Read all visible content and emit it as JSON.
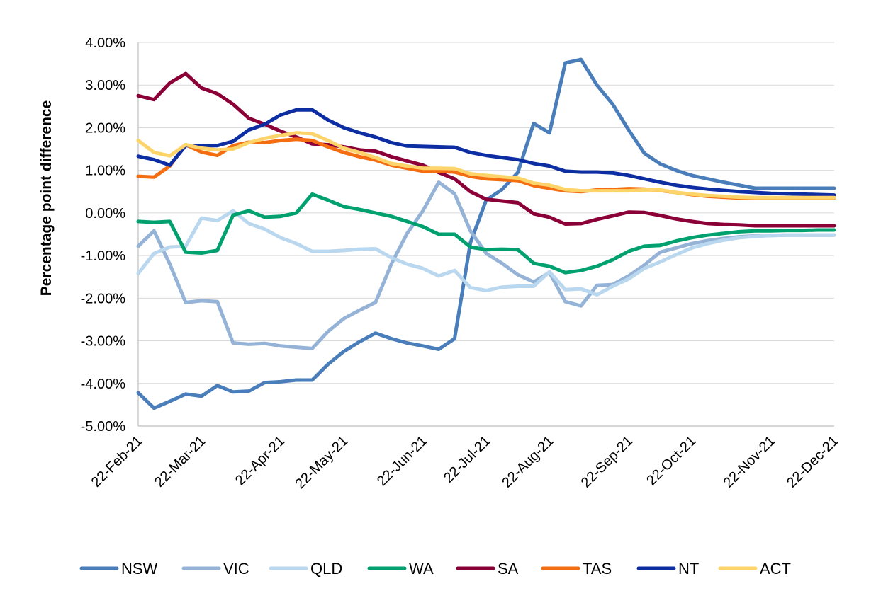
{
  "chart_data": {
    "type": "line",
    "title": "",
    "xlabel": "",
    "ylabel": "Percentage point difference",
    "ylim": [
      -5,
      4
    ],
    "y_ticks": [
      4,
      3,
      2,
      1,
      0,
      -1,
      -2,
      -3,
      -4,
      -5
    ],
    "y_tick_labels": [
      "4.00%",
      "3.00%",
      "2.00%",
      "1.00%",
      "0.00%",
      "-1.00%",
      "-2.00%",
      "-3.00%",
      "-4.00%",
      "-5.00%"
    ],
    "x_count": 45,
    "x_tick_index": [
      0,
      4,
      9,
      13,
      18,
      22,
      26,
      31,
      35,
      40,
      44
    ],
    "x_tick_labels": [
      "22-Feb-21",
      "22-Mar-21",
      "22-Apr-21",
      "22-May-21",
      "22-Jun-21",
      "22-Jul-21",
      "22-Aug-21",
      "22-Sep-21",
      "22-Oct-21",
      "22-Nov-21",
      "22-Dec-21"
    ],
    "grid": true,
    "legend_position": "bottom",
    "series": [
      {
        "name": "NSW",
        "color": "#4a7ebb",
        "values": [
          -4.22,
          -4.58,
          -4.42,
          -4.25,
          -4.3,
          -4.05,
          -4.2,
          -4.18,
          -3.98,
          -3.96,
          -3.92,
          -3.92,
          -3.55,
          -3.25,
          -3.02,
          -2.82,
          -2.95,
          -3.05,
          -3.12,
          -3.2,
          -2.95,
          -0.7,
          0.3,
          0.55,
          0.95,
          2.1,
          1.88,
          3.52,
          3.6,
          3.0,
          2.55,
          1.95,
          1.4,
          1.15,
          1.0,
          0.88,
          0.8,
          0.72,
          0.65,
          0.58,
          0.58,
          0.58,
          0.58,
          0.58,
          0.58
        ]
      },
      {
        "name": "VIC",
        "color": "#95b3d7",
        "values": [
          -0.78,
          -0.42,
          -1.2,
          -2.1,
          -2.06,
          -2.08,
          -3.05,
          -3.08,
          -3.06,
          -3.12,
          -3.15,
          -3.18,
          -2.78,
          -2.48,
          -2.28,
          -2.1,
          -1.2,
          -0.48,
          0.05,
          0.72,
          0.45,
          -0.42,
          -0.95,
          -1.18,
          -1.45,
          -1.62,
          -1.4,
          -2.08,
          -2.18,
          -1.7,
          -1.68,
          -1.48,
          -1.22,
          -0.92,
          -0.82,
          -0.72,
          -0.65,
          -0.6,
          -0.56,
          -0.54,
          -0.53,
          -0.52,
          -0.52,
          -0.52,
          -0.52
        ]
      },
      {
        "name": "QLD",
        "color": "#b9d7ee",
        "values": [
          -1.42,
          -0.95,
          -0.8,
          -0.78,
          -0.12,
          -0.18,
          0.05,
          -0.25,
          -0.38,
          -0.58,
          -0.72,
          -0.9,
          -0.9,
          -0.88,
          -0.85,
          -0.84,
          -1.05,
          -1.2,
          -1.3,
          -1.48,
          -1.35,
          -1.75,
          -1.82,
          -1.74,
          -1.72,
          -1.72,
          -1.38,
          -1.8,
          -1.78,
          -1.92,
          -1.72,
          -1.55,
          -1.3,
          -1.15,
          -0.98,
          -0.82,
          -0.72,
          -0.64,
          -0.58,
          -0.55,
          -0.53,
          -0.52,
          -0.52,
          -0.52,
          -0.52
        ]
      },
      {
        "name": "WA",
        "color": "#00a06f",
        "values": [
          -0.2,
          -0.22,
          -0.2,
          -0.92,
          -0.94,
          -0.88,
          -0.05,
          0.05,
          -0.1,
          -0.08,
          0.0,
          0.44,
          0.3,
          0.15,
          0.08,
          0.0,
          -0.08,
          -0.2,
          -0.32,
          -0.5,
          -0.5,
          -0.8,
          -0.86,
          -0.85,
          -0.86,
          -1.18,
          -1.25,
          -1.4,
          -1.35,
          -1.25,
          -1.1,
          -0.9,
          -0.78,
          -0.76,
          -0.66,
          -0.58,
          -0.52,
          -0.48,
          -0.44,
          -0.42,
          -0.42,
          -0.41,
          -0.41,
          -0.4,
          -0.4
        ]
      },
      {
        "name": "SA",
        "color": "#8b0037",
        "values": [
          2.75,
          2.66,
          3.05,
          3.27,
          2.93,
          2.8,
          2.55,
          2.22,
          2.08,
          1.92,
          1.78,
          1.62,
          1.6,
          1.55,
          1.48,
          1.45,
          1.32,
          1.22,
          1.12,
          0.95,
          0.8,
          0.5,
          0.32,
          0.28,
          0.24,
          -0.02,
          -0.1,
          -0.26,
          -0.25,
          -0.15,
          -0.07,
          0.02,
          0.01,
          -0.06,
          -0.14,
          -0.2,
          -0.25,
          -0.27,
          -0.28,
          -0.3,
          -0.3,
          -0.3,
          -0.3,
          -0.3,
          -0.3
        ]
      },
      {
        "name": "TAS",
        "color": "#f46d11",
        "values": [
          0.86,
          0.84,
          1.1,
          1.6,
          1.43,
          1.35,
          1.58,
          1.66,
          1.65,
          1.7,
          1.73,
          1.7,
          1.55,
          1.42,
          1.32,
          1.24,
          1.12,
          1.05,
          0.98,
          0.98,
          0.96,
          0.86,
          0.8,
          0.78,
          0.76,
          0.64,
          0.58,
          0.52,
          0.5,
          0.54,
          0.55,
          0.57,
          0.56,
          0.53,
          0.48,
          0.43,
          0.39,
          0.37,
          0.35,
          0.35,
          0.35,
          0.35,
          0.35,
          0.35,
          0.35
        ]
      },
      {
        "name": "NT",
        "color": "#0d2ea3",
        "values": [
          1.33,
          1.25,
          1.12,
          1.58,
          1.58,
          1.58,
          1.68,
          1.95,
          2.08,
          2.3,
          2.42,
          2.42,
          2.18,
          2.0,
          1.88,
          1.78,
          1.65,
          1.57,
          1.56,
          1.55,
          1.54,
          1.42,
          1.35,
          1.3,
          1.25,
          1.16,
          1.1,
          0.98,
          0.96,
          0.96,
          0.94,
          0.88,
          0.8,
          0.72,
          0.65,
          0.6,
          0.56,
          0.53,
          0.5,
          0.48,
          0.46,
          0.45,
          0.44,
          0.43,
          0.42
        ]
      },
      {
        "name": "ACT",
        "color": "#fdd469",
        "values": [
          1.7,
          1.42,
          1.34,
          1.6,
          1.52,
          1.48,
          1.5,
          1.65,
          1.75,
          1.82,
          1.88,
          1.86,
          1.7,
          1.52,
          1.42,
          1.3,
          1.16,
          1.1,
          1.05,
          1.05,
          1.04,
          0.92,
          0.88,
          0.85,
          0.82,
          0.7,
          0.65,
          0.55,
          0.52,
          0.52,
          0.52,
          0.52,
          0.54,
          0.54,
          0.48,
          0.44,
          0.41,
          0.39,
          0.37,
          0.36,
          0.36,
          0.36,
          0.36,
          0.36,
          0.36
        ]
      }
    ]
  }
}
